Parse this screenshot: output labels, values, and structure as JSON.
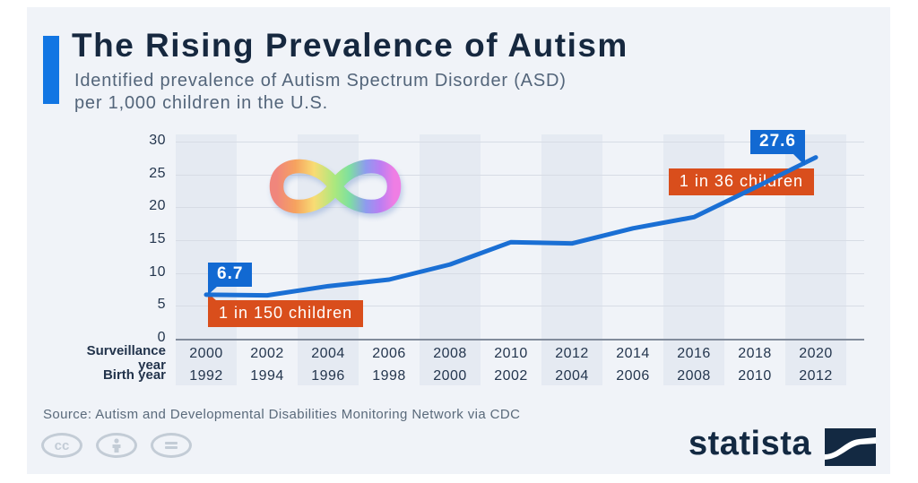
{
  "header": {
    "title": "The Rising Prevalence of Autism",
    "subtitle_line1": "Identified prevalence of Autism Spectrum Disorder (ASD)",
    "subtitle_line2": "per 1,000 children in the U.S."
  },
  "chart_data": {
    "type": "line",
    "title": "The Rising Prevalence of Autism",
    "subtitle": "Identified prevalence of Autism Spectrum Disorder (ASD) per 1,000 children in the U.S.",
    "categories": [
      2000,
      2002,
      2004,
      2006,
      2008,
      2010,
      2012,
      2014,
      2016,
      2018,
      2020
    ],
    "birth_years": [
      1992,
      1994,
      1996,
      1998,
      2000,
      2002,
      2004,
      2006,
      2008,
      2010,
      2012
    ],
    "series": [
      {
        "name": "ASD prevalence per 1,000 children",
        "values": [
          6.7,
          6.6,
          8.0,
          9.0,
          11.3,
          14.7,
          14.5,
          16.8,
          18.5,
          23.0,
          27.6
        ]
      }
    ],
    "ylim": [
      0,
      30
    ],
    "yticks": [
      0,
      5,
      10,
      15,
      20,
      25,
      30
    ],
    "grid": true,
    "legend": "none",
    "x_axis": {
      "row1_label": "Surveillance year",
      "row2_label": "Birth year"
    },
    "annotations": {
      "start_value_label": "6.7",
      "start_note": "1 in 150 children",
      "end_value_label": "27.6",
      "end_note": "1 in 36 children"
    },
    "colors": {
      "line": "#1a6fd4",
      "callout_blue": "#1269d2",
      "badge_orange": "#d94e1c",
      "accent_bar": "#1276e3",
      "band": "#e5eaf2",
      "background": "#f0f3f8"
    }
  },
  "decoration": {
    "symbol": "rainbow-infinity-icon"
  },
  "footer": {
    "source": "Source: Autism and Developmental Disabilities Monitoring Network via CDC",
    "brand": "statista",
    "cc_text": "cc",
    "nd_text": "=",
    "license_icons": [
      "cc-icon",
      "attribution-person-icon",
      "equals-icon"
    ]
  }
}
